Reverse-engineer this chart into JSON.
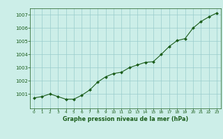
{
  "x": [
    0,
    1,
    2,
    3,
    4,
    5,
    6,
    7,
    8,
    9,
    10,
    11,
    12,
    13,
    14,
    15,
    16,
    17,
    18,
    19,
    20,
    21,
    22,
    23
  ],
  "y": [
    1000.7,
    1000.8,
    1001.0,
    1000.8,
    1000.6,
    1000.6,
    1000.9,
    1001.3,
    1001.9,
    1002.3,
    1002.55,
    1002.65,
    1003.0,
    1003.2,
    1003.4,
    1003.45,
    1004.0,
    1004.6,
    1005.05,
    1005.2,
    1006.0,
    1006.5,
    1006.85,
    1007.15
  ],
  "line_color": "#1a5c1a",
  "marker_color": "#1a5c1a",
  "bg_color": "#cceee8",
  "grid_color": "#99cccc",
  "xlabel": "Graphe pression niveau de la mer (hPa)",
  "xlabel_color": "#1a5c1a",
  "tick_color": "#1a5c1a",
  "ylim": [
    999.9,
    1007.5
  ],
  "xlim": [
    -0.5,
    23.5
  ],
  "yticks": [
    1001,
    1002,
    1003,
    1004,
    1005,
    1006,
    1007
  ],
  "xticks": [
    0,
    1,
    2,
    3,
    4,
    5,
    6,
    7,
    8,
    9,
    10,
    11,
    12,
    13,
    14,
    15,
    16,
    17,
    18,
    19,
    20,
    21,
    22,
    23
  ]
}
